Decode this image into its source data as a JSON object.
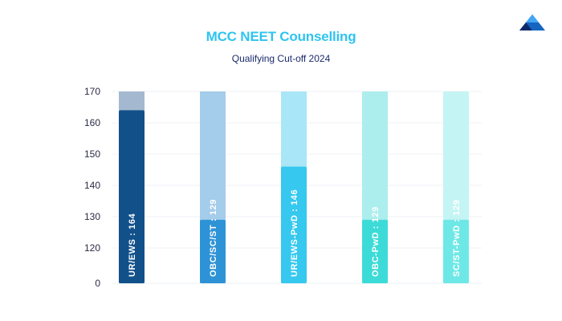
{
  "title": "MCC NEET Counselling",
  "subtitle": "Qualifying Cut-off 2024",
  "logo": {
    "icon": "triangle-logo-icon",
    "colors": [
      "#1565c0",
      "#42a5f5",
      "#0d2b6b"
    ]
  },
  "chart_data": {
    "type": "bar",
    "title": "MCC NEET Counselling",
    "subtitle": "Qualifying Cut-off 2024",
    "categories": [
      "UR/EWS",
      "OBC/SC/ST",
      "UR/EWS-PwD",
      "OBC-PwD",
      "SC/ST-PwD"
    ],
    "values": [
      164,
      129,
      146,
      129,
      129
    ],
    "bar_labels": [
      "UR/EWS : 164",
      "OBC/SC/ST : 129",
      "UR/EWS-PwD : 146",
      "OBC-PwD : 129",
      "SC/ST-PwD : 129"
    ],
    "yticks": [
      "170",
      "160",
      "150",
      "140",
      "130",
      "120",
      "0"
    ],
    "ytick_values": [
      170,
      160,
      150,
      140,
      130,
      120,
      0
    ],
    "y_axis_break": true,
    "ylim": [
      0,
      170
    ],
    "xlabel": "",
    "ylabel": "",
    "grid": true,
    "legend": "none",
    "bar_colors": [
      "#12508a",
      "#2e93d6",
      "#36c8ef",
      "#3ddbd7",
      "#6ee8e6"
    ],
    "track_colors": [
      "#a4b9cf",
      "#a4cceb",
      "#a9e6f7",
      "#abeeed",
      "#c5f4f4"
    ]
  }
}
